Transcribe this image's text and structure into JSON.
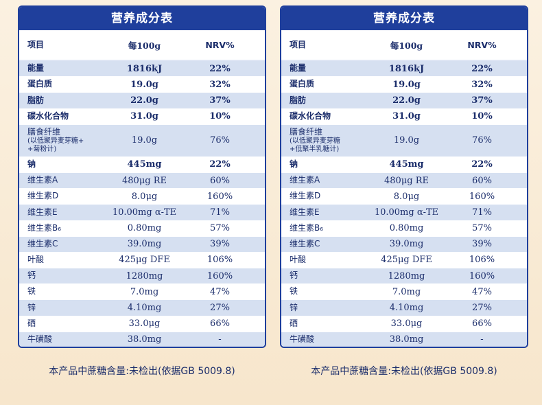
{
  "title": "营养成分表",
  "headers": {
    "item": "项目",
    "per100g": "每100g",
    "nrv": "NRV%"
  },
  "left_rows": [
    {
      "name": "能量",
      "value": "1816kJ",
      "nrv": "22%",
      "bold": true
    },
    {
      "name": "蛋白质",
      "value": "19.0g",
      "nrv": "32%",
      "bold": true
    },
    {
      "name": "脂肪",
      "value": "22.0g",
      "nrv": "37%",
      "bold": true
    },
    {
      "name": "碳水化合物",
      "value": "31.0g",
      "nrv": "10%",
      "bold": true
    },
    {
      "name": "膳食纤维",
      "sub1": "(以低聚异麦芽糖+",
      "sub2": "+菊粉计)",
      "value": "19.0g",
      "nrv": "76%",
      "tall": true
    },
    {
      "name": "钠",
      "value": "445mg",
      "nrv": "22%",
      "bold": true
    },
    {
      "name": "维生素A",
      "value": "480μg RE",
      "nrv": "60%"
    },
    {
      "name": "维生素D",
      "value": "8.0μg",
      "nrv": "160%"
    },
    {
      "name": "维生素E",
      "value": "10.00mg α-TE",
      "nrv": "71%"
    },
    {
      "name": "维生素B₆",
      "value": "0.80mg",
      "nrv": "57%"
    },
    {
      "name": "维生素C",
      "value": "39.0mg",
      "nrv": "39%"
    },
    {
      "name": "叶酸",
      "value": "425μg DFE",
      "nrv": "106%"
    },
    {
      "name": "钙",
      "value": "1280mg",
      "nrv": "160%"
    },
    {
      "name": "铁",
      "value": "7.0mg",
      "nrv": "47%"
    },
    {
      "name": "锌",
      "value": "4.10mg",
      "nrv": "27%"
    },
    {
      "name": "硒",
      "value": "33.0μg",
      "nrv": "66%"
    },
    {
      "name": "牛磺酸",
      "value": "38.0mg",
      "nrv": "-"
    }
  ],
  "right_rows": [
    {
      "name": "能量",
      "value": "1816kJ",
      "nrv": "22%",
      "bold": true
    },
    {
      "name": "蛋白质",
      "value": "19.0g",
      "nrv": "32%",
      "bold": true
    },
    {
      "name": "脂肪",
      "value": "22.0g",
      "nrv": "37%",
      "bold": true
    },
    {
      "name": "碳水化合物",
      "value": "31.0g",
      "nrv": "10%",
      "bold": true
    },
    {
      "name": "膳食纤维",
      "sub1": "(以低聚异麦芽糖",
      "sub2": "+低聚半乳糖计)",
      "value": "19.0g",
      "nrv": "76%",
      "tall": true
    },
    {
      "name": "钠",
      "value": "445mg",
      "nrv": "22%",
      "bold": true
    },
    {
      "name": "维生素A",
      "value": "480μg RE",
      "nrv": "60%"
    },
    {
      "name": "维生素D",
      "value": "8.0μg",
      "nrv": "160%"
    },
    {
      "name": "维生素E",
      "value": "10.00mg α-TE",
      "nrv": "71%"
    },
    {
      "name": "维生素B₆",
      "value": "0.80mg",
      "nrv": "57%"
    },
    {
      "name": "维生素C",
      "value": "39.0mg",
      "nrv": "39%"
    },
    {
      "name": "叶酸",
      "value": "425μg DFE",
      "nrv": "106%"
    },
    {
      "name": "钙",
      "value": "1280mg",
      "nrv": "160%"
    },
    {
      "name": "铁",
      "value": "7.0mg",
      "nrv": "47%"
    },
    {
      "name": "锌",
      "value": "4.10mg",
      "nrv": "27%"
    },
    {
      "name": "硒",
      "value": "33.0μg",
      "nrv": "66%"
    },
    {
      "name": "牛磺酸",
      "value": "38.0mg",
      "nrv": "-"
    }
  ],
  "footer": "本产品中蔗糖含量:未检出(依据GB 5009.8)",
  "colors": {
    "accent": "#1f3f9c",
    "stripe": "#d6e0f1",
    "text": "#1b2d6b",
    "background": "#fbf1e1"
  }
}
